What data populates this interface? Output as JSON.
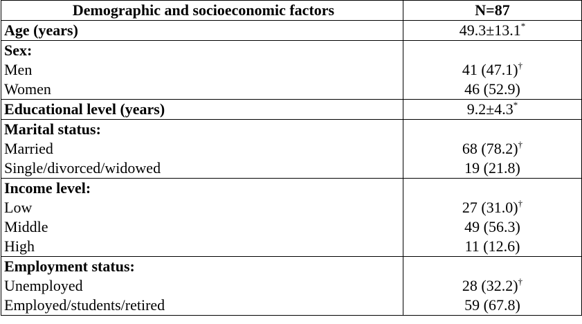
{
  "table": {
    "header": [
      "Demographic and socioeconomic factors",
      "N=87"
    ],
    "sections": [
      {
        "label": "Age (years)",
        "value": "49.3±13.1",
        "note": "*"
      },
      {
        "label": "Sex:",
        "rows": [
          [
            "Men",
            "41 (47.1)",
            "†"
          ],
          [
            "Women",
            "46 (52.9)"
          ]
        ]
      },
      {
        "label": "Educational level (years)",
        "value": "9.2±4.3",
        "note": "*"
      },
      {
        "label": "Marital status:",
        "rows": [
          [
            "Married",
            "68 (78.2)",
            "†"
          ],
          [
            "Single/divorced/widowed",
            "19 (21.8)"
          ]
        ]
      },
      {
        "label": "Income level:",
        "rows": [
          [
            "Low",
            "27 (31.0)",
            "†"
          ],
          [
            "Middle",
            "49 (56.3)"
          ],
          [
            "High",
            "11 (12.6)"
          ]
        ]
      },
      {
        "label": "Employment status:",
        "rows": [
          [
            "Unemployed",
            "28 (32.2)",
            "†"
          ],
          [
            "Employed/students/retired",
            "59 (67.8)"
          ]
        ]
      }
    ]
  }
}
